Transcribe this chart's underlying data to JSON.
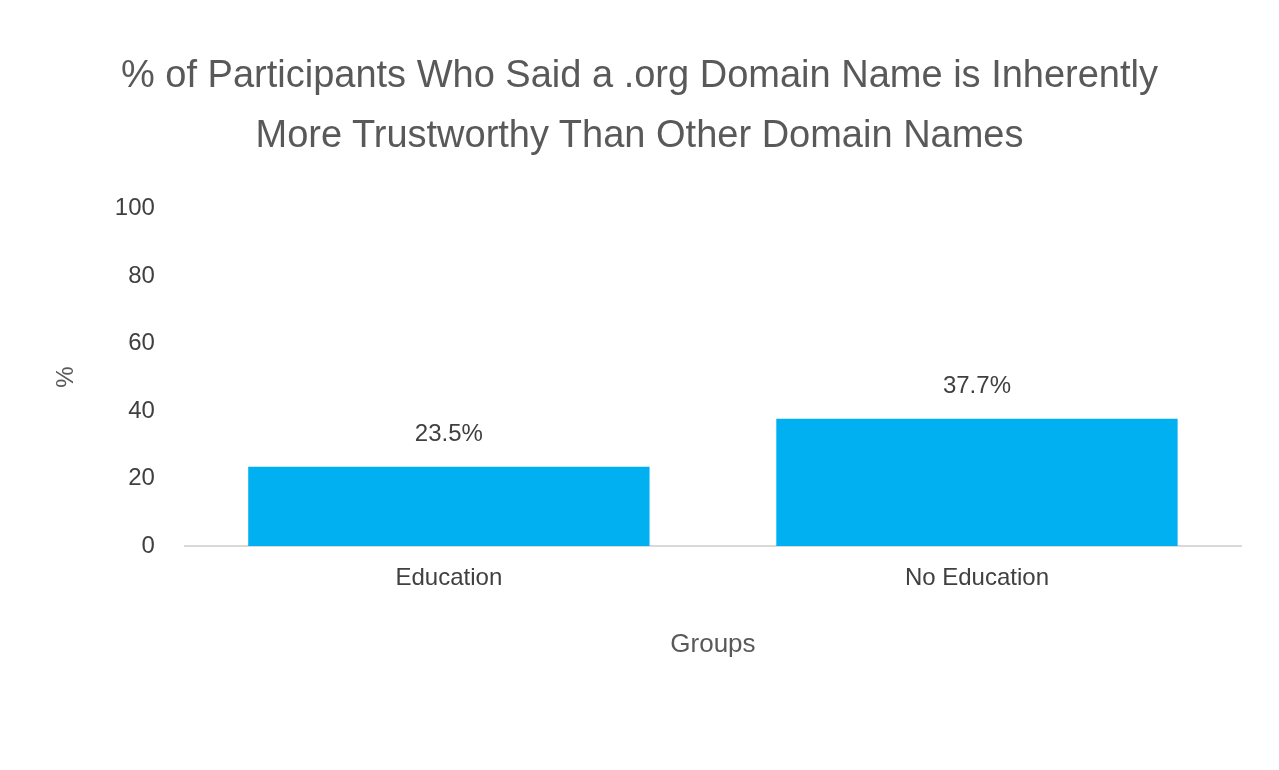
{
  "chart_data": {
    "type": "bar",
    "title": "% of Participants Who Said a .org Domain Name is Inherently More Trustworthy Than Other Domain Names",
    "xlabel": "Groups",
    "ylabel": "%",
    "categories": [
      "Education",
      "No Education"
    ],
    "values": [
      23.5,
      37.7
    ],
    "value_labels": [
      "23.5%",
      "37.7%"
    ],
    "color": "#00b0f0",
    "ylim": [
      0,
      100
    ],
    "yticks": [
      0,
      20,
      40,
      60,
      80,
      100
    ],
    "grid": false,
    "legend": false
  }
}
